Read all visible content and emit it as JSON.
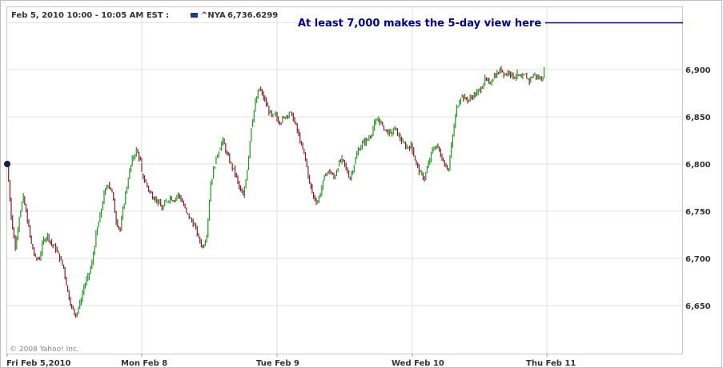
{
  "header": {
    "date_range": "Feb 5, 2010 10:00 - 10:05 AM EST :",
    "symbol": "^NYA",
    "last_value": "6,736.6299"
  },
  "annotation": "At least 7,000 makes the 5-day view here",
  "copyright": "© 2008 Yahoo! Inc.",
  "colors": {
    "up": "#1b9a1b",
    "down": "#8b1a2a",
    "annotation": "#00008b",
    "legend_swatch": "#1f3c88",
    "grid": "#e0e0e0"
  },
  "chart_data": {
    "type": "line",
    "title": "",
    "series_name": "^NYA",
    "ylim": [
      6600,
      6950
    ],
    "y_ticks": [
      6650,
      6700,
      6750,
      6800,
      6850,
      6900
    ],
    "y_tick_labels": [
      "6,650",
      "6,700",
      "6,750",
      "6,800",
      "6,850",
      "6,900"
    ],
    "x_labels": [
      "Fri Feb 5,2010",
      "Mon Feb 8",
      "Tue Feb 9",
      "Wed Feb 10",
      "Thu Feb 11"
    ],
    "day_boundaries": [
      0,
      1,
      2,
      3,
      4,
      5
    ],
    "grid": true,
    "reference_line": 7000,
    "points": [
      [
        0.0,
        6800
      ],
      [
        0.03,
        6745
      ],
      [
        0.06,
        6710
      ],
      [
        0.09,
        6745
      ],
      [
        0.12,
        6765
      ],
      [
        0.15,
        6740
      ],
      [
        0.18,
        6715
      ],
      [
        0.21,
        6700
      ],
      [
        0.24,
        6700
      ],
      [
        0.27,
        6720
      ],
      [
        0.3,
        6725
      ],
      [
        0.33,
        6715
      ],
      [
        0.36,
        6710
      ],
      [
        0.39,
        6700
      ],
      [
        0.42,
        6690
      ],
      [
        0.45,
        6665
      ],
      [
        0.48,
        6648
      ],
      [
        0.51,
        6640
      ],
      [
        0.54,
        6652
      ],
      [
        0.57,
        6670
      ],
      [
        0.6,
        6680
      ],
      [
        0.63,
        6695
      ],
      [
        0.66,
        6725
      ],
      [
        0.69,
        6745
      ],
      [
        0.72,
        6768
      ],
      [
        0.75,
        6780
      ],
      [
        0.78,
        6770
      ],
      [
        0.81,
        6740
      ],
      [
        0.84,
        6730
      ],
      [
        0.87,
        6760
      ],
      [
        0.9,
        6785
      ],
      [
        0.93,
        6805
      ],
      [
        0.96,
        6815
      ],
      [
        1.0,
        6800
      ],
      [
        1.0,
        6790
      ],
      [
        1.03,
        6780
      ],
      [
        1.06,
        6770
      ],
      [
        1.09,
        6765
      ],
      [
        1.12,
        6760
      ],
      [
        1.15,
        6752
      ],
      [
        1.18,
        6760
      ],
      [
        1.21,
        6765
      ],
      [
        1.24,
        6762
      ],
      [
        1.27,
        6768
      ],
      [
        1.3,
        6760
      ],
      [
        1.33,
        6748
      ],
      [
        1.36,
        6742
      ],
      [
        1.39,
        6735
      ],
      [
        1.42,
        6722
      ],
      [
        1.45,
        6712
      ],
      [
        1.48,
        6725
      ],
      [
        1.51,
        6780
      ],
      [
        1.54,
        6800
      ],
      [
        1.57,
        6815
      ],
      [
        1.6,
        6825
      ],
      [
        1.63,
        6810
      ],
      [
        1.66,
        6800
      ],
      [
        1.69,
        6790
      ],
      [
        1.72,
        6775
      ],
      [
        1.75,
        6765
      ],
      [
        1.78,
        6795
      ],
      [
        1.81,
        6840
      ],
      [
        1.84,
        6865
      ],
      [
        1.87,
        6880
      ],
      [
        1.9,
        6870
      ],
      [
        1.93,
        6860
      ],
      [
        1.96,
        6850
      ],
      [
        2.0,
        6852
      ],
      [
        2.0,
        6848
      ],
      [
        2.03,
        6845
      ],
      [
        2.06,
        6850
      ],
      [
        2.09,
        6855
      ],
      [
        2.12,
        6848
      ],
      [
        2.15,
        6835
      ],
      [
        2.18,
        6820
      ],
      [
        2.21,
        6805
      ],
      [
        2.24,
        6780
      ],
      [
        2.27,
        6765
      ],
      [
        2.3,
        6760
      ],
      [
        2.33,
        6775
      ],
      [
        2.36,
        6790
      ],
      [
        2.39,
        6792
      ],
      [
        2.42,
        6785
      ],
      [
        2.45,
        6798
      ],
      [
        2.48,
        6805
      ],
      [
        2.51,
        6795
      ],
      [
        2.54,
        6785
      ],
      [
        2.57,
        6800
      ],
      [
        2.6,
        6815
      ],
      [
        2.63,
        6822
      ],
      [
        2.66,
        6825
      ],
      [
        2.69,
        6830
      ],
      [
        2.72,
        6842
      ],
      [
        2.75,
        6848
      ],
      [
        2.78,
        6840
      ],
      [
        2.81,
        6835
      ],
      [
        2.84,
        6832
      ],
      [
        2.87,
        6838
      ],
      [
        2.9,
        6830
      ],
      [
        2.93,
        6822
      ],
      [
        2.96,
        6818
      ],
      [
        3.0,
        6820
      ],
      [
        3.0,
        6815
      ],
      [
        3.03,
        6800
      ],
      [
        3.06,
        6790
      ],
      [
        3.09,
        6785
      ],
      [
        3.12,
        6800
      ],
      [
        3.15,
        6815
      ],
      [
        3.18,
        6820
      ],
      [
        3.21,
        6810
      ],
      [
        3.24,
        6800
      ],
      [
        3.27,
        6795
      ],
      [
        3.3,
        6830
      ],
      [
        3.33,
        6860
      ],
      [
        3.36,
        6872
      ],
      [
        3.39,
        6870
      ],
      [
        3.42,
        6868
      ],
      [
        3.45,
        6872
      ],
      [
        3.48,
        6875
      ],
      [
        3.51,
        6880
      ],
      [
        3.54,
        6890
      ],
      [
        3.57,
        6885
      ],
      [
        3.6,
        6892
      ],
      [
        3.63,
        6896
      ],
      [
        3.66,
        6900
      ],
      [
        3.69,
        6895
      ],
      [
        3.72,
        6898
      ],
      [
        3.75,
        6892
      ],
      [
        3.78,
        6895
      ],
      [
        3.81,
        6890
      ],
      [
        3.84,
        6894
      ],
      [
        3.87,
        6888
      ],
      [
        3.9,
        6895
      ],
      [
        3.93,
        6892
      ],
      [
        3.96,
        6890
      ],
      [
        3.98,
        6898
      ]
    ]
  }
}
